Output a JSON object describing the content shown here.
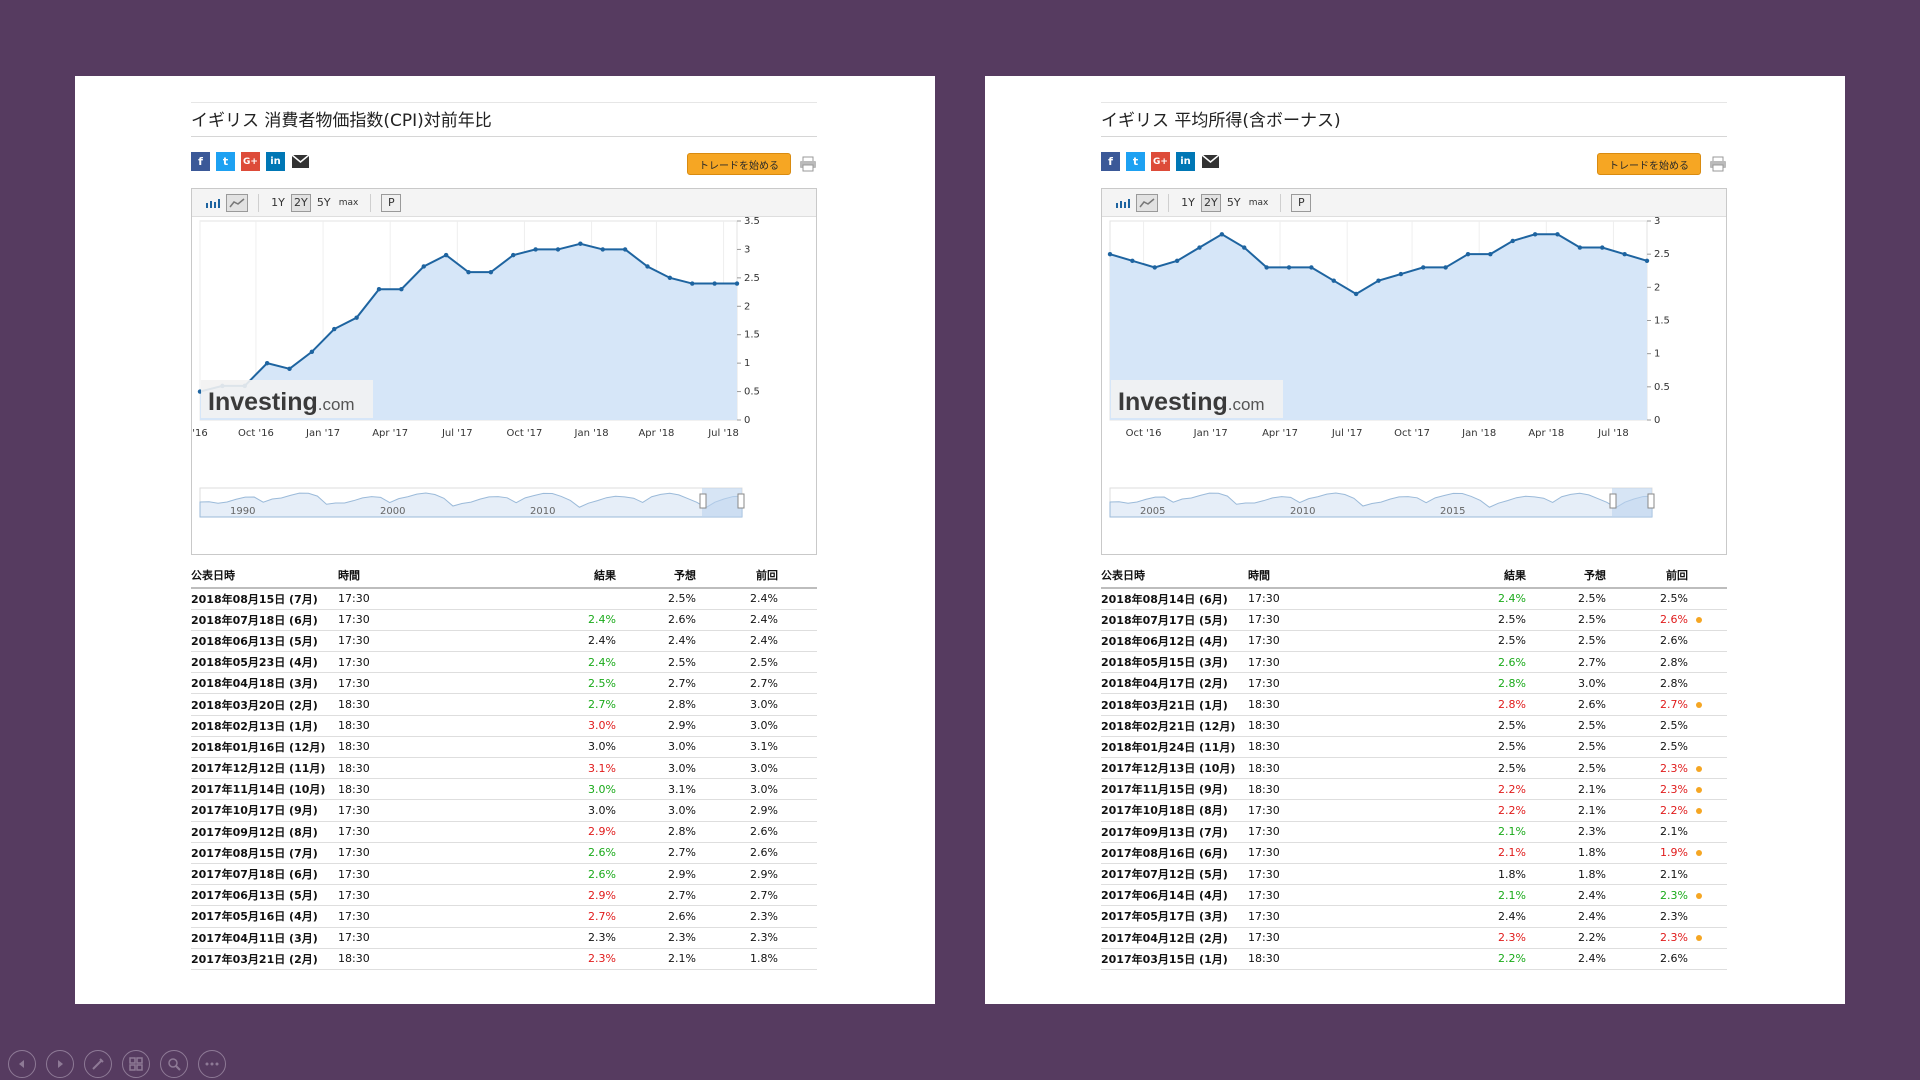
{
  "colors": {
    "background": "#563b60",
    "chart_line": "#1e64a0",
    "chart_fill": "#d6e6f8",
    "positive": "#1aaa1a",
    "negative": "#e01b1b",
    "trade_button": "#f6a623"
  },
  "icons": [
    "facebook-icon",
    "twitter-icon",
    "google-plus-icon",
    "linkedin-icon",
    "mail-icon",
    "print-icon",
    "bar-chart-icon",
    "area-chart-icon"
  ],
  "left": {
    "title": "イギリス 消費者物価指数(CPI)対前年比",
    "trade_button": "トレードを始める",
    "toolbar": {
      "y1": "1Y",
      "y2": "2Y",
      "y5": "5Y",
      "max": "max",
      "p": "P"
    },
    "watermark": {
      "brand": "Investing",
      "suffix": ".com"
    },
    "headers": {
      "date": "公表日時",
      "time": "時間",
      "actual": "結果",
      "forecast": "予想",
      "previous": "前回"
    },
    "rows": [
      {
        "date": "2018年08月15日 (7月)",
        "time": "17:30",
        "actual": "",
        "forecast": "2.5%",
        "previous": "2.4%",
        "cls": "",
        "dot": false
      },
      {
        "date": "2018年07月18日 (6月)",
        "time": "17:30",
        "actual": "2.4%",
        "forecast": "2.6%",
        "previous": "2.4%",
        "cls": "good",
        "dot": false
      },
      {
        "date": "2018年06月13日 (5月)",
        "time": "17:30",
        "actual": "2.4%",
        "forecast": "2.4%",
        "previous": "2.4%",
        "cls": "",
        "dot": false
      },
      {
        "date": "2018年05月23日 (4月)",
        "time": "17:30",
        "actual": "2.4%",
        "forecast": "2.5%",
        "previous": "2.5%",
        "cls": "good",
        "dot": false
      },
      {
        "date": "2018年04月18日 (3月)",
        "time": "17:30",
        "actual": "2.5%",
        "forecast": "2.7%",
        "previous": "2.7%",
        "cls": "good",
        "dot": false
      },
      {
        "date": "2018年03月20日 (2月)",
        "time": "18:30",
        "actual": "2.7%",
        "forecast": "2.8%",
        "previous": "3.0%",
        "cls": "good",
        "dot": false
      },
      {
        "date": "2018年02月13日 (1月)",
        "time": "18:30",
        "actual": "3.0%",
        "forecast": "2.9%",
        "previous": "3.0%",
        "cls": "bad",
        "dot": false
      },
      {
        "date": "2018年01月16日 (12月)",
        "time": "18:30",
        "actual": "3.0%",
        "forecast": "3.0%",
        "previous": "3.1%",
        "cls": "",
        "dot": false
      },
      {
        "date": "2017年12月12日 (11月)",
        "time": "18:30",
        "actual": "3.1%",
        "forecast": "3.0%",
        "previous": "3.0%",
        "cls": "bad",
        "dot": false
      },
      {
        "date": "2017年11月14日 (10月)",
        "time": "18:30",
        "actual": "3.0%",
        "forecast": "3.1%",
        "previous": "3.0%",
        "cls": "good",
        "dot": false
      },
      {
        "date": "2017年10月17日 (9月)",
        "time": "17:30",
        "actual": "3.0%",
        "forecast": "3.0%",
        "previous": "2.9%",
        "cls": "",
        "dot": false
      },
      {
        "date": "2017年09月12日 (8月)",
        "time": "17:30",
        "actual": "2.9%",
        "forecast": "2.8%",
        "previous": "2.6%",
        "cls": "bad",
        "dot": false
      },
      {
        "date": "2017年08月15日 (7月)",
        "time": "17:30",
        "actual": "2.6%",
        "forecast": "2.7%",
        "previous": "2.6%",
        "cls": "good",
        "dot": false
      },
      {
        "date": "2017年07月18日 (6月)",
        "time": "17:30",
        "actual": "2.6%",
        "forecast": "2.9%",
        "previous": "2.9%",
        "cls": "good",
        "dot": false
      },
      {
        "date": "2017年06月13日 (5月)",
        "time": "17:30",
        "actual": "2.9%",
        "forecast": "2.7%",
        "previous": "2.7%",
        "cls": "bad",
        "dot": false
      },
      {
        "date": "2017年05月16日 (4月)",
        "time": "17:30",
        "actual": "2.7%",
        "forecast": "2.6%",
        "previous": "2.3%",
        "cls": "bad",
        "dot": false
      },
      {
        "date": "2017年04月11日 (3月)",
        "time": "17:30",
        "actual": "2.3%",
        "forecast": "2.3%",
        "previous": "2.3%",
        "cls": "",
        "dot": false
      },
      {
        "date": "2017年03月21日 (2月)",
        "time": "18:30",
        "actual": "2.3%",
        "forecast": "2.1%",
        "previous": "1.8%",
        "cls": "bad",
        "dot": false
      }
    ],
    "chart": {
      "ymin": 0,
      "ymax": 3.5,
      "yticks": [
        "0",
        "0.5",
        "1",
        "1.5",
        "2",
        "2.5",
        "3",
        "3.5"
      ],
      "xticks": [
        {
          "label": "'16",
          "i": 0
        },
        {
          "label": "Oct '16",
          "i": 2.5
        },
        {
          "label": "Jan '17",
          "i": 5.5
        },
        {
          "label": "Apr '17",
          "i": 8.5
        },
        {
          "label": "Jul '17",
          "i": 11.5
        },
        {
          "label": "Oct '17",
          "i": 14.5
        },
        {
          "label": "Jan '18",
          "i": 17.5
        },
        {
          "label": "Apr '18",
          "i": 20.4
        },
        {
          "label": "Jul '18",
          "i": 23.4
        }
      ],
      "values": [
        0.5,
        0.6,
        0.6,
        1.0,
        0.9,
        1.2,
        1.6,
        1.8,
        2.3,
        2.3,
        2.7,
        2.9,
        2.6,
        2.6,
        2.9,
        3.0,
        3.0,
        3.1,
        3.0,
        3.0,
        2.7,
        2.5,
        2.4,
        2.4,
        2.4
      ],
      "navigator": [
        "1990",
        "2000",
        "2010"
      ]
    }
  },
  "right": {
    "title": "イギリス 平均所得(含ボーナス)",
    "trade_button": "トレードを始める",
    "toolbar": {
      "y1": "1Y",
      "y2": "2Y",
      "y5": "5Y",
      "max": "max",
      "p": "P"
    },
    "watermark": {
      "brand": "Investing",
      "suffix": ".com"
    },
    "headers": {
      "date": "公表日時",
      "time": "時間",
      "actual": "結果",
      "forecast": "予想",
      "previous": "前回"
    },
    "rows": [
      {
        "date": "2018年08月14日 (6月)",
        "time": "17:30",
        "actual": "2.4%",
        "forecast": "2.5%",
        "previous": "2.5%",
        "cls": "good",
        "pcls": "",
        "dot": false
      },
      {
        "date": "2018年07月17日 (5月)",
        "time": "17:30",
        "actual": "2.5%",
        "forecast": "2.5%",
        "previous": "2.6%",
        "cls": "",
        "pcls": "bad",
        "dot": true
      },
      {
        "date": "2018年06月12日 (4月)",
        "time": "17:30",
        "actual": "2.5%",
        "forecast": "2.5%",
        "previous": "2.6%",
        "cls": "",
        "pcls": "",
        "dot": false
      },
      {
        "date": "2018年05月15日 (3月)",
        "time": "17:30",
        "actual": "2.6%",
        "forecast": "2.7%",
        "previous": "2.8%",
        "cls": "good",
        "pcls": "",
        "dot": false
      },
      {
        "date": "2018年04月17日 (2月)",
        "time": "17:30",
        "actual": "2.8%",
        "forecast": "3.0%",
        "previous": "2.8%",
        "cls": "good",
        "pcls": "",
        "dot": false
      },
      {
        "date": "2018年03月21日 (1月)",
        "time": "18:30",
        "actual": "2.8%",
        "forecast": "2.6%",
        "previous": "2.7%",
        "cls": "bad",
        "pcls": "bad",
        "dot": true
      },
      {
        "date": "2018年02月21日 (12月)",
        "time": "18:30",
        "actual": "2.5%",
        "forecast": "2.5%",
        "previous": "2.5%",
        "cls": "",
        "pcls": "",
        "dot": false
      },
      {
        "date": "2018年01月24日 (11月)",
        "time": "18:30",
        "actual": "2.5%",
        "forecast": "2.5%",
        "previous": "2.5%",
        "cls": "",
        "pcls": "",
        "dot": false
      },
      {
        "date": "2017年12月13日 (10月)",
        "time": "18:30",
        "actual": "2.5%",
        "forecast": "2.5%",
        "previous": "2.3%",
        "cls": "",
        "pcls": "bad",
        "dot": true
      },
      {
        "date": "2017年11月15日 (9月)",
        "time": "18:30",
        "actual": "2.2%",
        "forecast": "2.1%",
        "previous": "2.3%",
        "cls": "bad",
        "pcls": "bad",
        "dot": true
      },
      {
        "date": "2017年10月18日 (8月)",
        "time": "17:30",
        "actual": "2.2%",
        "forecast": "2.1%",
        "previous": "2.2%",
        "cls": "bad",
        "pcls": "bad",
        "dot": true
      },
      {
        "date": "2017年09月13日 (7月)",
        "time": "17:30",
        "actual": "2.1%",
        "forecast": "2.3%",
        "previous": "2.1%",
        "cls": "good",
        "pcls": "",
        "dot": false
      },
      {
        "date": "2017年08月16日 (6月)",
        "time": "17:30",
        "actual": "2.1%",
        "forecast": "1.8%",
        "previous": "1.9%",
        "cls": "bad",
        "pcls": "bad",
        "dot": true
      },
      {
        "date": "2017年07月12日 (5月)",
        "time": "17:30",
        "actual": "1.8%",
        "forecast": "1.8%",
        "previous": "2.1%",
        "cls": "",
        "pcls": "",
        "dot": false
      },
      {
        "date": "2017年06月14日 (4月)",
        "time": "17:30",
        "actual": "2.1%",
        "forecast": "2.4%",
        "previous": "2.3%",
        "cls": "good",
        "pcls": "good",
        "dot": true
      },
      {
        "date": "2017年05月17日 (3月)",
        "time": "17:30",
        "actual": "2.4%",
        "forecast": "2.4%",
        "previous": "2.3%",
        "cls": "",
        "pcls": "",
        "dot": false
      },
      {
        "date": "2017年04月12日 (2月)",
        "time": "17:30",
        "actual": "2.3%",
        "forecast": "2.2%",
        "previous": "2.3%",
        "cls": "bad",
        "pcls": "bad",
        "dot": true
      },
      {
        "date": "2017年03月15日 (1月)",
        "time": "18:30",
        "actual": "2.2%",
        "forecast": "2.4%",
        "previous": "2.6%",
        "cls": "good",
        "pcls": "",
        "dot": false
      }
    ],
    "chart": {
      "ymin": 0,
      "ymax": 3,
      "yticks": [
        "0",
        "0.5",
        "1",
        "1.5",
        "2",
        "2.5",
        "3"
      ],
      "xticks": [
        {
          "label": "Oct '16",
          "i": 1.5
        },
        {
          "label": "Jan '17",
          "i": 4.5
        },
        {
          "label": "Apr '17",
          "i": 7.6
        },
        {
          "label": "Jul '17",
          "i": 10.6
        },
        {
          "label": "Oct '17",
          "i": 13.5
        },
        {
          "label": "Jan '18",
          "i": 16.5
        },
        {
          "label": "Apr '18",
          "i": 19.5
        },
        {
          "label": "Jul '18",
          "i": 22.5
        }
      ],
      "values": [
        2.5,
        2.4,
        2.3,
        2.4,
        2.6,
        2.8,
        2.6,
        2.3,
        2.3,
        2.3,
        2.1,
        1.9,
        2.1,
        2.2,
        2.3,
        2.3,
        2.5,
        2.5,
        2.7,
        2.8,
        2.8,
        2.6,
        2.6,
        2.5,
        2.4
      ],
      "navigator": [
        "2005",
        "2010",
        "2015"
      ]
    }
  },
  "nav_buttons": [
    "previous-slide",
    "next-slide",
    "pen-tool",
    "slide-sorter",
    "zoom",
    "more-options"
  ]
}
